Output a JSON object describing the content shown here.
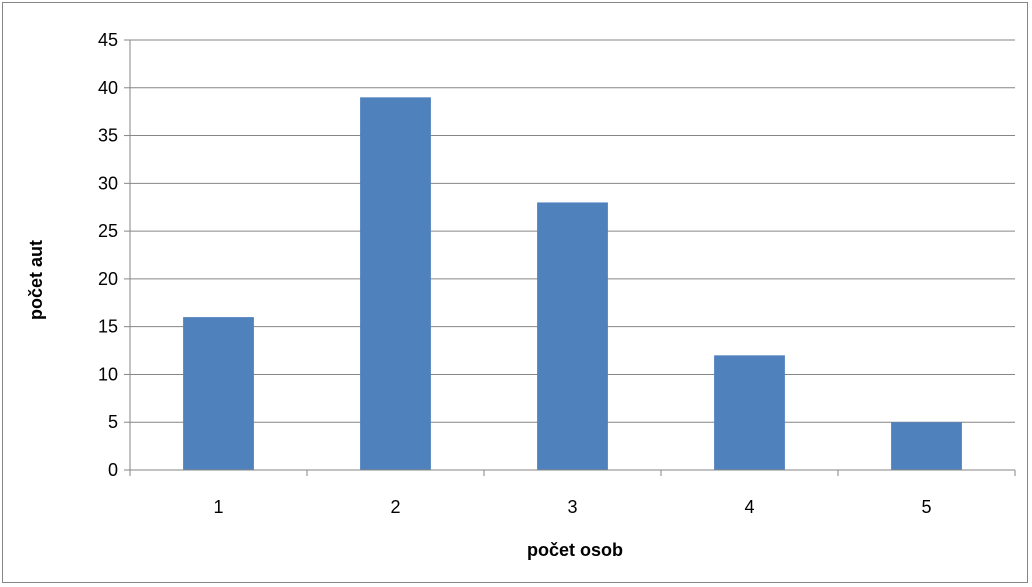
{
  "chart_data": {
    "type": "bar",
    "categories": [
      "1",
      "2",
      "3",
      "4",
      "5"
    ],
    "values": [
      16,
      39,
      28,
      12,
      5
    ],
    "title": "",
    "xlabel": "počet osob",
    "ylabel": "počet aut",
    "ylim": [
      0,
      45
    ],
    "yticks": [
      "0",
      "5",
      "10",
      "15",
      "20",
      "25",
      "30",
      "35",
      "40",
      "45"
    ],
    "grid": true,
    "legend": "none",
    "colors": {
      "bar": "#4F81BD",
      "grid": "#868686",
      "axis": "#868686"
    }
  }
}
